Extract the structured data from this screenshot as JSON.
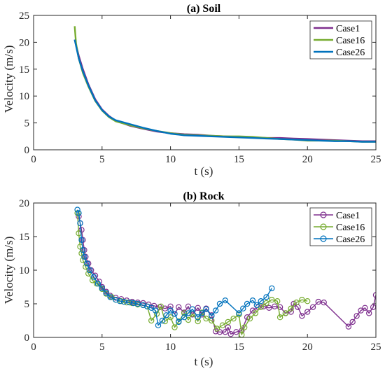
{
  "chart_data": [
    {
      "type": "line",
      "title": "(a) Soil",
      "xlabel": "t (s)",
      "ylabel": "Velocity (m/s)",
      "xlim": [
        0,
        25
      ],
      "ylim": [
        0,
        25
      ],
      "xticks": [
        0,
        5,
        10,
        15,
        20,
        25
      ],
      "yticks": [
        0,
        5,
        10,
        15,
        20,
        25
      ],
      "legend_position": "top-right",
      "grid": false,
      "series": [
        {
          "name": "Case1",
          "color": "#7E2F8E",
          "marker": "none",
          "x": [
            3.0,
            3.3,
            3.6,
            4.0,
            4.5,
            5.0,
            5.5,
            6.0,
            7.0,
            8.0,
            9.0,
            10.0,
            11.0,
            12.0,
            13.0,
            14.0,
            15.0,
            16.0,
            17.0,
            18.0,
            19.0,
            20.0,
            21.0,
            22.0,
            23.0,
            24.0,
            25.0
          ],
          "y": [
            20.5,
            17.5,
            15.0,
            12.2,
            9.4,
            7.5,
            6.3,
            5.4,
            4.5,
            3.9,
            3.4,
            3.1,
            2.9,
            2.8,
            2.6,
            2.5,
            2.4,
            2.3,
            2.2,
            2.2,
            2.1,
            2.0,
            1.9,
            1.8,
            1.7,
            1.6,
            1.6
          ]
        },
        {
          "name": "Case16",
          "color": "#77AC30",
          "marker": "none",
          "x": [
            3.0,
            3.1,
            3.3,
            3.6,
            4.0,
            4.5,
            5.0,
            5.5,
            6.0,
            7.0,
            8.0,
            9.0,
            10.0,
            11.0,
            12.0,
            13.0,
            14.0,
            15.0,
            16.0,
            17.0,
            18.0,
            19.0,
            20.0,
            21.0,
            22.0,
            23.0,
            24.0,
            25.0
          ],
          "y": [
            23.0,
            19.8,
            17.0,
            14.3,
            11.8,
            9.1,
            7.3,
            6.1,
            5.3,
            4.6,
            4.0,
            3.5,
            3.1,
            2.8,
            2.7,
            2.6,
            2.5,
            2.5,
            2.4,
            2.2,
            2.0,
            1.9,
            1.7,
            1.7,
            1.7,
            1.6,
            1.5,
            1.5
          ]
        },
        {
          "name": "Case26",
          "color": "#0072BD",
          "marker": "none",
          "x": [
            3.0,
            3.3,
            3.6,
            4.0,
            4.5,
            5.0,
            5.5,
            6.0,
            7.0,
            8.0,
            9.0,
            10.0,
            11.0,
            12.0,
            13.0,
            14.0,
            15.0,
            16.0,
            17.0,
            18.0,
            19.0,
            20.0,
            21.0,
            22.0,
            23.0,
            24.0,
            25.0
          ],
          "y": [
            20.5,
            17.0,
            14.6,
            12.0,
            9.2,
            7.4,
            6.2,
            5.5,
            4.8,
            4.1,
            3.5,
            3.0,
            2.7,
            2.6,
            2.5,
            2.4,
            2.3,
            2.2,
            2.1,
            2.0,
            1.9,
            1.8,
            1.7,
            1.6,
            1.6,
            1.5,
            1.5
          ]
        }
      ]
    },
    {
      "type": "line",
      "title": "(b) Rock",
      "xlabel": "t (s)",
      "ylabel": "Velocity (m/s)",
      "xlim": [
        0,
        25
      ],
      "ylim": [
        0,
        20
      ],
      "xticks": [
        0,
        5,
        10,
        15,
        20,
        25
      ],
      "yticks": [
        0,
        5,
        10,
        15,
        20
      ],
      "legend_position": "top-right",
      "grid": false,
      "series": [
        {
          "name": "Case1",
          "color": "#7E2F8E",
          "marker": "circle",
          "x": [
            3.3,
            3.4,
            3.5,
            3.6,
            3.7,
            3.8,
            4.0,
            4.2,
            4.5,
            4.8,
            5.0,
            5.3,
            5.6,
            6.0,
            6.4,
            6.8,
            7.2,
            7.6,
            8.0,
            8.4,
            8.8,
            9.2,
            9.6,
            10.0,
            10.3,
            10.6,
            11.0,
            11.3,
            11.6,
            12.0,
            12.3,
            12.6,
            13.0,
            13.3,
            13.6,
            14.0,
            14.2,
            14.4,
            14.8,
            15.2,
            15.6,
            16.0,
            16.4,
            16.8,
            17.2,
            17.6,
            18.0,
            18.4,
            18.8,
            19.0,
            19.3,
            19.6,
            20.0,
            20.4,
            20.8,
            21.2,
            23.0,
            23.3,
            23.6,
            23.9,
            24.2,
            24.5,
            24.8,
            25.0
          ],
          "y": [
            18.0,
            17.0,
            16.0,
            14.5,
            13.0,
            12.0,
            11.0,
            10.0,
            9.2,
            8.3,
            7.5,
            6.8,
            6.2,
            5.9,
            5.7,
            5.5,
            5.3,
            5.2,
            5.1,
            4.9,
            4.7,
            4.5,
            4.3,
            4.6,
            3.5,
            4.5,
            3.7,
            4.6,
            3.4,
            4.4,
            3.4,
            4.3,
            3.3,
            0.9,
            0.8,
            0.8,
            1.5,
            0.5,
            0.8,
            1.0,
            3.0,
            4.0,
            4.5,
            4.6,
            4.4,
            4.6,
            4.5,
            3.6,
            3.8,
            5.0,
            4.5,
            3.2,
            3.8,
            4.5,
            5.3,
            5.2,
            1.6,
            2.3,
            3.2,
            4.0,
            4.4,
            3.6,
            4.5,
            6.3
          ]
        },
        {
          "name": "Case16",
          "color": "#77AC30",
          "marker": "circle",
          "x": [
            3.2,
            3.3,
            3.4,
            3.5,
            3.6,
            3.8,
            4.0,
            4.3,
            4.6,
            5.0,
            5.3,
            5.7,
            6.0,
            6.4,
            6.8,
            7.2,
            7.6,
            8.0,
            8.3,
            8.6,
            9.0,
            9.3,
            9.6,
            10.0,
            10.3,
            10.6,
            11.0,
            11.3,
            11.6,
            12.0,
            12.3,
            12.6,
            13.0,
            13.4,
            13.8,
            14.2,
            14.6,
            15.0,
            15.2,
            15.4,
            15.8,
            16.2,
            16.6,
            17.0,
            17.4,
            17.8,
            18.0,
            18.4,
            18.8,
            19.2,
            19.6,
            20.0
          ],
          "y": [
            18.5,
            15.5,
            13.5,
            12.5,
            11.5,
            10.5,
            9.5,
            8.5,
            8.0,
            7.2,
            6.5,
            6.0,
            5.6,
            5.4,
            5.2,
            5.1,
            4.9,
            4.8,
            4.6,
            2.5,
            3.5,
            4.6,
            2.4,
            3.0,
            1.5,
            2.4,
            3.6,
            2.6,
            3.5,
            2.4,
            3.7,
            2.8,
            2.5,
            1.3,
            1.8,
            2.3,
            2.8,
            3.4,
            0.4,
            1.5,
            2.8,
            3.6,
            4.5,
            5.1,
            5.6,
            5.4,
            3.0,
            3.6,
            4.3,
            5.2,
            5.6,
            5.4
          ]
        },
        {
          "name": "Case26",
          "color": "#0072BD",
          "marker": "circle",
          "x": [
            3.2,
            3.3,
            3.4,
            3.5,
            3.6,
            3.7,
            3.9,
            4.1,
            4.4,
            4.7,
            5.0,
            5.3,
            5.6,
            6.0,
            6.3,
            6.6,
            7.0,
            7.3,
            7.6,
            8.0,
            8.3,
            8.6,
            8.9,
            9.1,
            9.4,
            9.7,
            10.0,
            10.3,
            10.6,
            11.0,
            11.3,
            11.6,
            12.0,
            12.3,
            12.6,
            13.0,
            13.3,
            13.6,
            14.0,
            15.0,
            15.3,
            15.6,
            16.0,
            16.3,
            16.6,
            17.0,
            17.4
          ],
          "y": [
            19.0,
            18.5,
            17.0,
            14.5,
            13.0,
            12.0,
            11.0,
            10.0,
            9.0,
            8.0,
            7.3,
            6.6,
            6.0,
            5.6,
            5.4,
            5.3,
            5.2,
            5.1,
            5.0,
            4.8,
            4.6,
            4.4,
            4.0,
            1.8,
            2.5,
            3.3,
            4.0,
            3.5,
            2.3,
            3.0,
            3.6,
            4.2,
            3.0,
            3.6,
            4.2,
            3.2,
            4.0,
            5.0,
            5.5,
            3.6,
            4.3,
            5.0,
            5.5,
            4.8,
            5.4,
            6.0,
            7.3
          ]
        }
      ]
    }
  ]
}
